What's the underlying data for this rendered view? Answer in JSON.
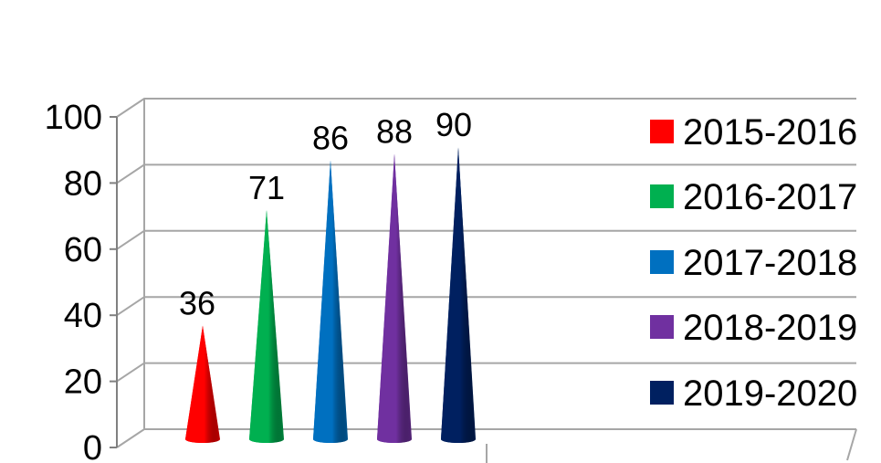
{
  "chart_data": {
    "type": "bar",
    "bar_shape": "cone",
    "categories": [
      "2015-2016",
      "2016-2017",
      "2017-2018",
      "2018-2019",
      "2019-2020"
    ],
    "values": [
      36,
      71,
      86,
      88,
      90
    ],
    "series_colors": [
      "#ff0000",
      "#00b050",
      "#0070c0",
      "#7030a0",
      "#002060"
    ],
    "data_labels": [
      "36",
      "71",
      "86",
      "88",
      "90"
    ],
    "ylim": [
      0,
      100
    ],
    "yticks": [
      0,
      20,
      40,
      60,
      80,
      100
    ],
    "ytick_labels": [
      "0",
      "20",
      "40",
      "60",
      "80",
      "100"
    ],
    "grid": true,
    "legend": {
      "placement": "right",
      "entries": [
        "2015-2016",
        "2016-2017",
        "2017-2018",
        "2018-2019",
        "2019-2020"
      ]
    },
    "title": "",
    "xlabel": "",
    "ylabel": ""
  }
}
